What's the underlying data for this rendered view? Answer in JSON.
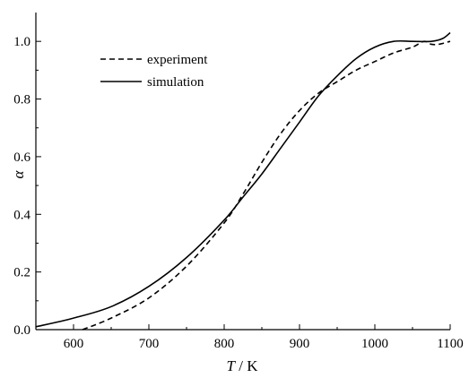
{
  "chart_data": {
    "type": "line",
    "xlabel_italic": "T",
    "xlabel_rest": " / K",
    "ylabel": "α",
    "xlim": [
      550,
      1100
    ],
    "ylim": [
      0.0,
      1.1
    ],
    "x_ticks": [
      600,
      700,
      800,
      900,
      1000,
      1100
    ],
    "x_tick_labels": [
      "600",
      "700",
      "800",
      "900",
      "1000",
      "1100"
    ],
    "y_ticks": [
      0.0,
      0.2,
      0.4,
      0.6,
      0.8,
      1.0
    ],
    "y_tick_labels": [
      "0.0",
      "0.2",
      "0.4",
      "0.6",
      "0.8",
      "1.0"
    ],
    "grid": false,
    "legend_position": "top-left",
    "series": [
      {
        "name": "experiment",
        "style": "dashed",
        "color": "#000000",
        "x": [
          612,
          650,
          700,
          750,
          800,
          825,
          850,
          875,
          900,
          925,
          950,
          975,
          1000,
          1025,
          1050,
          1065,
          1075,
          1085,
          1100
        ],
        "y": [
          0.0,
          0.04,
          0.11,
          0.22,
          0.37,
          0.47,
          0.58,
          0.68,
          0.76,
          0.82,
          0.86,
          0.9,
          0.93,
          0.96,
          0.98,
          1.0,
          0.99,
          0.99,
          1.0
        ]
      },
      {
        "name": "simulation",
        "style": "solid",
        "color": "#000000",
        "x": [
          550,
          600,
          650,
          700,
          750,
          800,
          825,
          850,
          875,
          900,
          925,
          950,
          975,
          1000,
          1025,
          1050,
          1075,
          1090,
          1100
        ],
        "y": [
          0.01,
          0.04,
          0.08,
          0.15,
          0.25,
          0.38,
          0.46,
          0.54,
          0.63,
          0.72,
          0.81,
          0.88,
          0.94,
          0.98,
          1.0,
          1.0,
          1.0,
          1.01,
          1.03
        ]
      }
    ]
  }
}
